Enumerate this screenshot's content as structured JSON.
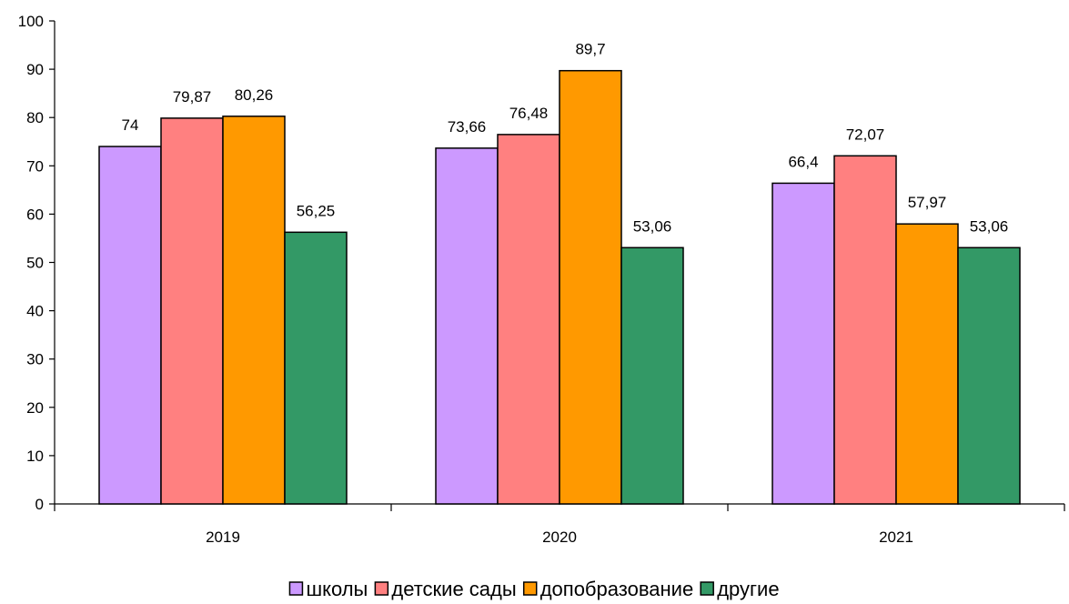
{
  "chart_data": {
    "type": "bar",
    "title": "",
    "xlabel": "",
    "ylabel": "",
    "categories": [
      "2019",
      "2020",
      "2021"
    ],
    "ylim": [
      0,
      100
    ],
    "yticks": [
      0,
      10,
      20,
      30,
      40,
      50,
      60,
      70,
      80,
      90,
      100
    ],
    "grid": false,
    "legend_position": "bottom",
    "series": [
      {
        "name": "школы",
        "color": "#cc99ff",
        "values": [
          74,
          73.66,
          66.4
        ],
        "labels": [
          "74",
          "73,66",
          "66,4"
        ]
      },
      {
        "name": "детские сады",
        "color": "#ff8080",
        "values": [
          79.87,
          76.48,
          72.07
        ],
        "labels": [
          "79,87",
          "76,48",
          "72,07"
        ]
      },
      {
        "name": "допобразование",
        "color": "#ff9900",
        "values": [
          80.26,
          89.7,
          57.97
        ],
        "labels": [
          "80,26",
          "89,7",
          "57,97"
        ]
      },
      {
        "name": "другие",
        "color": "#339966",
        "values": [
          56.25,
          53.06,
          53.06
        ],
        "labels": [
          "56,25",
          "53,06",
          "53,06"
        ]
      }
    ]
  }
}
